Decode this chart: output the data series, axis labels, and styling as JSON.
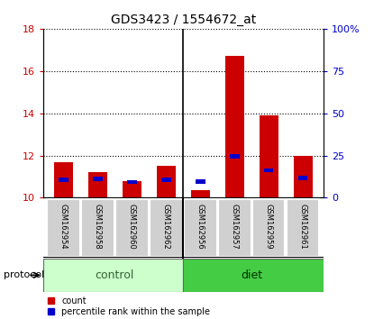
{
  "title": "GDS3423 / 1554672_at",
  "samples": [
    "GSM162954",
    "GSM162958",
    "GSM162960",
    "GSM162962",
    "GSM162956",
    "GSM162957",
    "GSM162959",
    "GSM162961"
  ],
  "groups": [
    "control",
    "control",
    "control",
    "control",
    "diet",
    "diet",
    "diet",
    "diet"
  ],
  "red_values": [
    11.7,
    11.2,
    10.8,
    11.5,
    10.35,
    16.7,
    13.9,
    12.0
  ],
  "blue_values": [
    10.85,
    10.9,
    10.75,
    10.85,
    10.78,
    11.95,
    11.3,
    10.95
  ],
  "red_base": 10.0,
  "ylim_left": [
    10,
    18
  ],
  "ylim_right": [
    0,
    100
  ],
  "yticks_left": [
    10,
    12,
    14,
    16,
    18
  ],
  "yticks_right": [
    0,
    25,
    50,
    75,
    100
  ],
  "yticklabels_right": [
    "0",
    "25",
    "50",
    "75",
    "100%"
  ],
  "protocol_label": "protocol",
  "group_labels": [
    "control",
    "diet"
  ],
  "legend_red": "count",
  "legend_blue": "percentile rank within the sample",
  "control_color": "#ccffcc",
  "diet_color": "#44cc44",
  "bar_width": 0.55,
  "red_color": "#cc0000",
  "blue_color": "#0000cc",
  "tick_label_color_left": "#cc0000",
  "tick_label_color_right": "#0000cc",
  "n_control": 4,
  "n_diet": 4
}
